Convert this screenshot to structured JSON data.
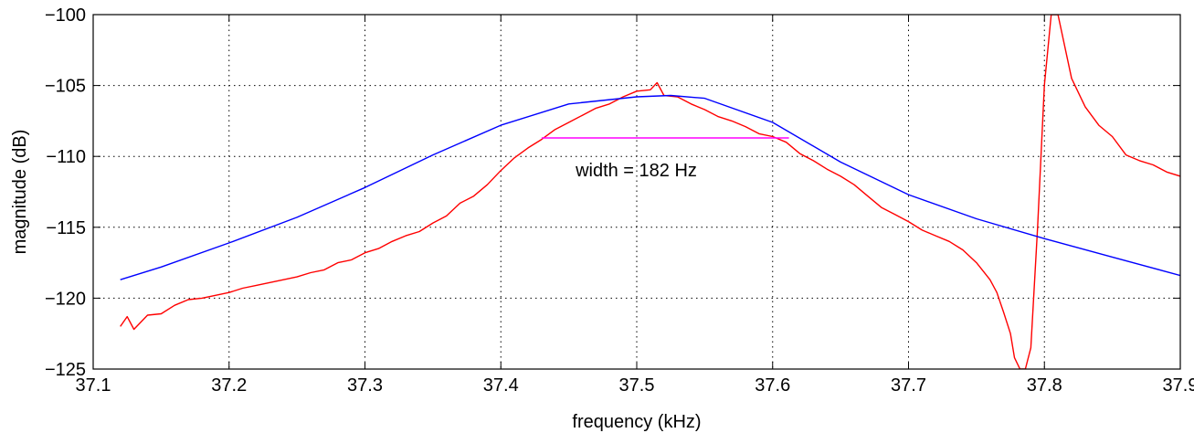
{
  "chart_data": {
    "type": "line",
    "xlabel": "frequency (kHz)",
    "ylabel": "magnitude (dB)",
    "xlim": [
      37.1,
      37.9
    ],
    "ylim": [
      -125,
      -100
    ],
    "xticks": [
      37.1,
      37.2,
      37.3,
      37.4,
      37.5,
      37.6,
      37.7,
      37.8,
      37.9
    ],
    "xtick_labels": [
      "37.1",
      "37.2",
      "37.3",
      "37.4",
      "37.5",
      "37.6",
      "37.7",
      "37.8",
      "37.9"
    ],
    "yticks": [
      -125,
      -120,
      -115,
      -110,
      -105,
      -100
    ],
    "ytick_labels": [
      "−125",
      "−120",
      "−115",
      "−110",
      "−105",
      "−100"
    ],
    "grid": true,
    "series": [
      {
        "color": "#ff0000",
        "x": [
          37.12,
          37.125,
          37.13,
          37.14,
          37.15,
          37.16,
          37.17,
          37.18,
          37.19,
          37.2,
          37.21,
          37.22,
          37.23,
          37.24,
          37.25,
          37.26,
          37.27,
          37.28,
          37.29,
          37.3,
          37.31,
          37.32,
          37.33,
          37.34,
          37.35,
          37.36,
          37.37,
          37.38,
          37.39,
          37.4,
          37.41,
          37.42,
          37.43,
          37.44,
          37.45,
          37.46,
          37.47,
          37.48,
          37.49,
          37.5,
          37.51,
          37.515,
          37.52,
          37.53,
          37.54,
          37.55,
          37.56,
          37.57,
          37.58,
          37.59,
          37.6,
          37.61,
          37.62,
          37.63,
          37.64,
          37.65,
          37.66,
          37.67,
          37.68,
          37.69,
          37.7,
          37.71,
          37.72,
          37.73,
          37.74,
          37.75,
          37.76,
          37.765,
          37.77,
          37.775,
          37.778,
          37.782,
          37.786,
          37.79,
          37.795,
          37.8,
          37.805,
          37.81,
          37.82,
          37.83,
          37.84,
          37.85,
          37.86,
          37.87,
          37.88,
          37.89,
          37.9
        ],
        "y": [
          -122.0,
          -121.3,
          -122.2,
          -121.2,
          -121.1,
          -120.5,
          -120.1,
          -120.0,
          -119.8,
          -119.6,
          -119.3,
          -119.1,
          -118.9,
          -118.7,
          -118.5,
          -118.2,
          -118.0,
          -117.5,
          -117.3,
          -116.8,
          -116.5,
          -116.0,
          -115.6,
          -115.3,
          -114.7,
          -114.2,
          -113.3,
          -112.8,
          -112.0,
          -111.0,
          -110.1,
          -109.4,
          -108.8,
          -108.1,
          -107.6,
          -107.1,
          -106.6,
          -106.3,
          -105.8,
          -105.4,
          -105.3,
          -104.8,
          -105.7,
          -105.8,
          -106.3,
          -106.7,
          -107.2,
          -107.5,
          -107.9,
          -108.4,
          -108.6,
          -109.0,
          -109.8,
          -110.3,
          -110.9,
          -111.4,
          -112.0,
          -112.8,
          -113.6,
          -114.1,
          -114.6,
          -115.2,
          -115.6,
          -116.0,
          -116.6,
          -117.5,
          -118.7,
          -119.6,
          -121.0,
          -122.5,
          -124.2,
          -125.0,
          -125.0,
          -123.5,
          -115.0,
          -105.0,
          -100.0,
          -100.0,
          -104.5,
          -106.5,
          -107.8,
          -108.6,
          -109.9,
          -110.3,
          -110.6,
          -111.1,
          -111.4
        ]
      },
      {
        "color": "#0000ff",
        "x": [
          37.12,
          37.15,
          37.2,
          37.25,
          37.3,
          37.35,
          37.4,
          37.45,
          37.5,
          37.525,
          37.55,
          37.6,
          37.65,
          37.7,
          37.75,
          37.8,
          37.85,
          37.9
        ],
        "y": [
          -118.7,
          -117.8,
          -116.1,
          -114.3,
          -112.2,
          -109.9,
          -107.8,
          -106.3,
          -105.8,
          -105.7,
          -105.9,
          -107.6,
          -110.4,
          -112.7,
          -114.4,
          -115.8,
          -117.1,
          -118.4
        ]
      },
      {
        "color": "#ff00ff",
        "x": [
          37.43,
          37.612
        ],
        "y": [
          -108.7,
          -108.7
        ]
      }
    ],
    "annotations": [
      {
        "text": "width = 182 Hz",
        "x": 37.455,
        "y": -111.4
      }
    ]
  }
}
